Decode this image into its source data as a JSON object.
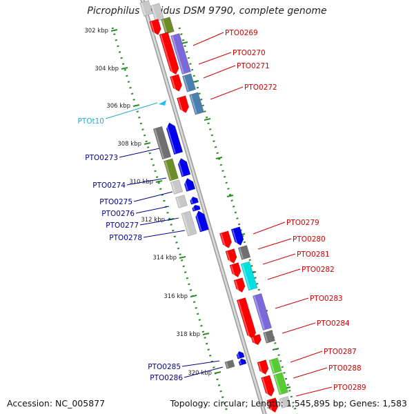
{
  "title": "Picrophilus torridus DSM 9790, complete genome",
  "accession": "Accession: NC_005877",
  "topology": "Topology: circular; Length: 1,545,895 bp; Genes: 1,583",
  "colors": {
    "forward_label": "#cc0000",
    "reverse_label": "#00008b",
    "rna_label": "#22aacc",
    "scale_dots": "#2a8a2a",
    "gene_red": "#ff0000",
    "gene_blue": "#0000ee",
    "olive": "#6e8c2a",
    "purple": "#7b68d9",
    "steelblue": "#4a7fb0",
    "gray": "#707070",
    "lightgray": "#c8c8c8",
    "cyan": "#00e0e0",
    "green": "#55cc33"
  },
  "scale_ticks": [
    "302 kbp",
    "304 kbp",
    "306 kbp",
    "308 kbp",
    "310 kbp",
    "312 kbp",
    "314 kbp",
    "316 kbp",
    "318 kbp",
    "320 kbp"
  ],
  "forward_genes": [
    "PTO0269",
    "PTO0270",
    "PTO0271",
    "PTO0272",
    "PTO0279",
    "PTO0280",
    "PTO0281",
    "PTO0282",
    "PTO0283",
    "PTO0284",
    "PTO0287",
    "PTO0288",
    "PTO0289"
  ],
  "reverse_genes": [
    "PTO0273",
    "PTO0274",
    "PTO0275",
    "PTO0276",
    "PTO0277",
    "PTO0278",
    "PTO0285",
    "PTO0286"
  ],
  "rna_genes": [
    "PTOt10"
  ]
}
